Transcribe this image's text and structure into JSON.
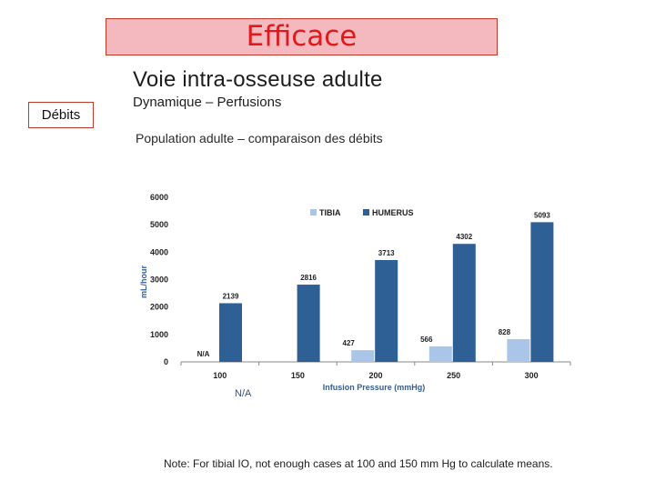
{
  "slide": {
    "title": "Efficace",
    "side_label": "Débits",
    "heading_main": "Voie intra-osseuse adulte",
    "heading_sub": "Dynamique – Perfusions",
    "heading_pop": "Population adulte – comparaison des débits",
    "extra_label": "N/A",
    "note": "Note: For tibial IO, not enough cases at 100 and 150 mm Hg to calculate means."
  },
  "colors": {
    "tibia": "#a9c6e8",
    "humerus": "#2e5f95",
    "title_text": "#e0191c",
    "title_bg": "#f4b9be",
    "box_border": "#c0392b"
  },
  "chart_data": {
    "type": "bar",
    "categories": [
      "100",
      "150",
      "200",
      "250",
      "300"
    ],
    "series": [
      {
        "name": "TIBIA",
        "values": [
          null,
          null,
          427,
          566,
          828
        ],
        "labels": [
          "N/A",
          "",
          "427",
          "566",
          "828"
        ]
      },
      {
        "name": "HUMERUS",
        "values": [
          2139,
          2816,
          3713,
          4302,
          5093
        ],
        "labels": [
          "2139",
          "2816",
          "3713",
          "4302",
          "5093"
        ]
      }
    ],
    "xlabel": "Infusion Pressure (mmHg)",
    "ylabel": "mL/hour",
    "ylim": [
      0,
      6000
    ],
    "yticks": [
      "0",
      "1000",
      "2000",
      "3000",
      "4000",
      "5000",
      "6000"
    ],
    "legend_position": "top-right",
    "grid": false
  }
}
